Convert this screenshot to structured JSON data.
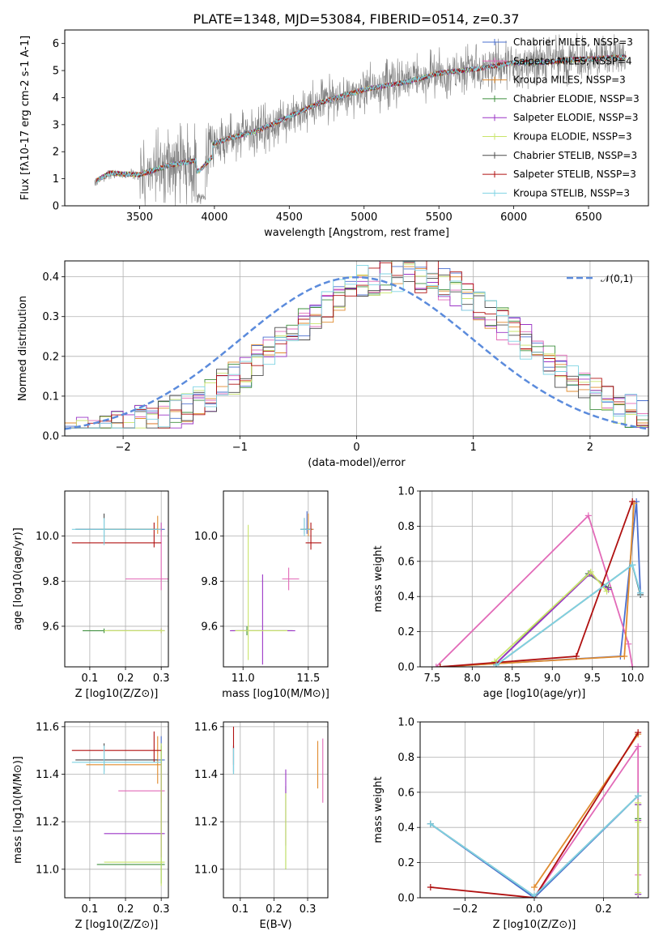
{
  "page_title": "PLATE=1348, MJD=53084, FIBERID=0514, z=0.37",
  "colors": {
    "Chabrier MILES": "#4a6fcf",
    "Salpeter MILES": "#e26ab8",
    "Kroupa MILES": "#e08b2e",
    "Chabrier ELODIE": "#3f8f3f",
    "Salpeter ELODIE": "#9b35c6",
    "Kroupa ELODIE": "#c9e46a",
    "Chabrier STELIB": "#4c4c4c",
    "Salpeter STELIB": "#b01010",
    "Kroupa STELIB": "#7fd3e3",
    "data": "#808080",
    "normal": "#5b8bdc"
  },
  "chart_data": [
    {
      "id": "spectrum",
      "type": "line",
      "xlabel": "wavelength [Angstrom, rest frame]",
      "ylabel": "Flux [f$_\\lambda$10$^{-17}$ erg cm$^{-2}$ s$^{-1}$ A$^{-1}$]",
      "xlim": [
        3000,
        6900
      ],
      "ylim": [
        0,
        6.5
      ],
      "xticks": [
        "3500",
        "4000",
        "4500",
        "5000",
        "5500",
        "6000",
        "6500"
      ],
      "yticks": [
        "0",
        "1",
        "2",
        "3",
        "4",
        "5",
        "6"
      ],
      "legend": [
        "Chabrier MILES, N$_{SSP}$=3",
        "Salpeter MILES, N$_{SSP}$=4",
        "Kroupa MILES, N$_{SSP}$=3",
        "Chabrier ELODIE, N$_{SSP}$=3",
        "Salpeter ELODIE, N$_{SSP}$=3",
        "Kroupa ELODIE, N$_{SSP}$=3",
        "Chabrier STELIB, N$_{SSP}$=3",
        "Salpeter STELIB, N$_{SSP}$=3",
        "Kroupa STELIB, N$_{SSP}$=3"
      ],
      "legend_position": "upper right",
      "continuum": {
        "x": [
          3200,
          3300,
          3500,
          3700,
          3900,
          4000,
          4100,
          4300,
          4500,
          4700,
          5000,
          5300,
          5500,
          5800,
          6000,
          6200,
          6400,
          6750
        ],
        "y": [
          0.9,
          1.2,
          1.15,
          1.5,
          1.7,
          2.3,
          2.5,
          2.8,
          3.3,
          3.8,
          4.3,
          4.6,
          4.9,
          5.1,
          5.3,
          5.3,
          5.4,
          5.5
        ]
      }
    },
    {
      "id": "residuals",
      "type": "step",
      "xlabel": "(data-model)/error",
      "ylabel": "Normed distribution",
      "xlim": [
        -2.5,
        2.5
      ],
      "ylim": [
        0,
        0.44
      ],
      "xticks": [
        "−2",
        "−1",
        "0",
        "1",
        "2"
      ],
      "yticks": [
        "0.0",
        "0.1",
        "0.2",
        "0.3",
        "0.4"
      ],
      "legend": [
        "$\\mathcal{N}(0,1)$"
      ],
      "legend_position": "upper right",
      "grid": true
    },
    {
      "id": "age_vs_Z",
      "type": "errorbar",
      "xlabel": "Z [log$_{10}$(Z/Z$_\\odot$)]",
      "ylabel": "age  [log$_{10}$(age/yr)]",
      "xlim": [
        0.03,
        0.32
      ],
      "ylim": [
        9.42,
        10.2
      ],
      "xticks": [
        "0.1",
        "0.2",
        "0.3"
      ],
      "yticks": [
        "9.6",
        "9.8",
        "10.0"
      ],
      "grid": true
    },
    {
      "id": "age_vs_mass",
      "type": "errorbar",
      "xlabel": "mass [log$_{10}$(M/M$_\\odot$)]",
      "xlim": [
        10.85,
        11.65
      ],
      "ylim": [
        9.42,
        10.2
      ],
      "xticks": [
        "11.0",
        "11.5"
      ],
      "yticks": [
        "9.6",
        "9.8",
        "10.0"
      ],
      "grid": true
    },
    {
      "id": "weight_vs_age",
      "type": "line",
      "xlabel": "age  [log$_{10}$(age/yr)]",
      "ylabel": "mass weight",
      "xlim": [
        7.35,
        10.2
      ],
      "ylim": [
        0,
        1
      ],
      "xticks": [
        "7.5",
        "8.0",
        "8.5",
        "9.0",
        "9.5",
        "10.0"
      ],
      "yticks": [
        "0.0",
        "0.2",
        "0.4",
        "0.6",
        "0.8",
        "1.0"
      ],
      "grid": true,
      "series": [
        {
          "name": "Chabrier MILES",
          "x": [
            7.6,
            9.85,
            10.05,
            10.1
          ],
          "y": [
            0.0,
            0.06,
            0.94,
            0.42
          ]
        },
        {
          "name": "Salpeter MILES",
          "x": [
            7.55,
            9.45,
            9.95,
            10.0
          ],
          "y": [
            0.0,
            0.86,
            0.13,
            0.0
          ]
        },
        {
          "name": "Kroupa MILES",
          "x": [
            7.6,
            9.9,
            10.02
          ],
          "y": [
            0.0,
            0.06,
            0.93
          ]
        },
        {
          "name": "Chabrier ELODIE",
          "x": [
            8.3,
            9.45,
            9.7
          ],
          "y": [
            0.02,
            0.53,
            0.45
          ]
        },
        {
          "name": "Salpeter ELODIE",
          "x": [
            8.3,
            9.47,
            9.7
          ],
          "y": [
            0.02,
            0.53,
            0.44
          ]
        },
        {
          "name": "Kroupa ELODIE",
          "x": [
            8.28,
            9.48,
            9.68
          ],
          "y": [
            0.03,
            0.54,
            0.43
          ]
        },
        {
          "name": "Chabrier STELIB",
          "x": [
            8.3,
            10.0,
            10.1
          ],
          "y": [
            0.01,
            0.58,
            0.41
          ]
        },
        {
          "name": "Salpeter STELIB",
          "x": [
            7.6,
            9.3,
            10.0
          ],
          "y": [
            0.0,
            0.06,
            0.94
          ]
        },
        {
          "name": "Kroupa STELIB",
          "x": [
            8.3,
            10.0,
            10.1
          ],
          "y": [
            0.01,
            0.58,
            0.42
          ]
        }
      ]
    },
    {
      "id": "mass_vs_Z",
      "type": "errorbar",
      "xlabel": "Z [log$_{10}$(Z/Z$_\\odot$)]",
      "ylabel": "mass [log$_{10}$(M/M$_\\odot$)]",
      "xlim": [
        0.03,
        0.32
      ],
      "ylim": [
        10.88,
        11.62
      ],
      "xticks": [
        "0.1",
        "0.2",
        "0.3"
      ],
      "yticks": [
        "11.0",
        "11.2",
        "11.4",
        "11.6"
      ],
      "grid": true
    },
    {
      "id": "mass_vs_ebv",
      "type": "errorbar",
      "xlabel": "E(B-V)",
      "xlim": [
        0.05,
        0.36
      ],
      "ylim": [
        10.88,
        11.62
      ],
      "xticks": [
        "0.1",
        "0.2",
        "0.3"
      ],
      "yticks": [
        "11.0",
        "11.2",
        "11.4",
        "11.6"
      ],
      "grid": true
    },
    {
      "id": "weight_vs_Z",
      "type": "line",
      "xlabel": "Z [log$_{10}$(Z/Z$_\\odot$)]",
      "ylabel": "mass weight",
      "xlim": [
        -0.33,
        0.33
      ],
      "ylim": [
        0,
        1
      ],
      "xticks": [
        "−0.2",
        "0.0",
        "0.2"
      ],
      "yticks": [
        "0.0",
        "0.2",
        "0.4",
        "0.6",
        "0.8",
        "1.0"
      ],
      "grid": true,
      "series": [
        {
          "name": "Chabrier MILES",
          "x": [
            -0.3,
            0.0,
            0.3
          ],
          "y": [
            0.42,
            0.0,
            0.58
          ]
        },
        {
          "name": "Salpeter MILES",
          "x": [
            0.0,
            0.3,
            0.3
          ],
          "y": [
            0.0,
            0.86,
            0.13
          ]
        },
        {
          "name": "Kroupa MILES",
          "x": [
            0.0,
            0.3
          ],
          "y": [
            0.06,
            0.93
          ]
        },
        {
          "name": "Chabrier ELODIE",
          "x": [
            0.3,
            0.3,
            0.3
          ],
          "y": [
            0.53,
            0.45,
            0.02
          ]
        },
        {
          "name": "Salpeter ELODIE",
          "x": [
            0.3,
            0.3,
            0.3
          ],
          "y": [
            0.53,
            0.44,
            0.02
          ]
        },
        {
          "name": "Kroupa ELODIE",
          "x": [
            0.3,
            0.3,
            0.3
          ],
          "y": [
            0.54,
            0.43,
            0.03
          ]
        },
        {
          "name": "Chabrier STELIB",
          "x": [
            -0.3,
            0.0,
            0.3
          ],
          "y": [
            0.42,
            0.01,
            0.58
          ]
        },
        {
          "name": "Salpeter STELIB",
          "x": [
            -0.3,
            0.0,
            0.3
          ],
          "y": [
            0.06,
            0.0,
            0.94
          ]
        },
        {
          "name": "Kroupa STELIB",
          "x": [
            -0.3,
            0.0,
            0.3
          ],
          "y": [
            0.42,
            0.01,
            0.58
          ]
        }
      ]
    }
  ]
}
